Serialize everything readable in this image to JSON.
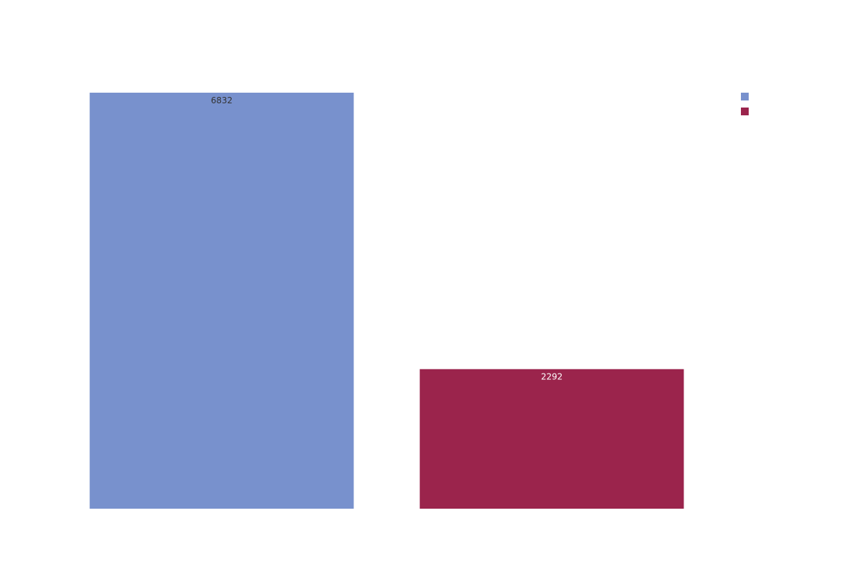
{
  "chart_data": {
    "type": "bar",
    "categories": [
      "",
      ""
    ],
    "values": [
      6832,
      2292
    ],
    "colors": [
      "#7891cd",
      "#9b244c"
    ],
    "data_labels": [
      "6832",
      "2292"
    ],
    "data_label_colors": [
      "#333333",
      "#ffffff"
    ],
    "legend_entries": [
      {
        "label": "",
        "color": "#7891cd"
      },
      {
        "label": "",
        "color": "#9b244c"
      }
    ],
    "legend_position": "top-right",
    "title": "",
    "xlabel": "",
    "ylabel": "",
    "ylim": [
      0,
      6832
    ],
    "grid": false,
    "axes_visible": false
  }
}
